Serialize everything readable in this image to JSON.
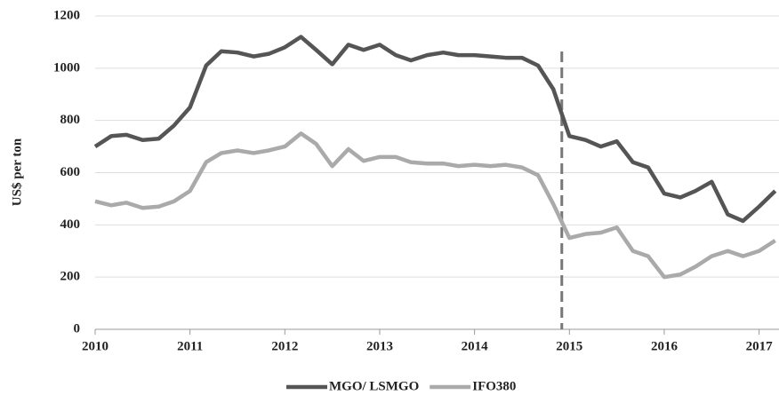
{
  "chart_data": {
    "type": "line",
    "y_label": "US$ per ton",
    "x": [
      2010,
      2010.17,
      2010.33,
      2010.5,
      2010.67,
      2010.83,
      2011,
      2011.17,
      2011.33,
      2011.5,
      2011.67,
      2011.83,
      2012,
      2012.17,
      2012.33,
      2012.5,
      2012.67,
      2012.83,
      2013,
      2013.17,
      2013.33,
      2013.5,
      2013.67,
      2013.83,
      2014,
      2014.17,
      2014.33,
      2014.5,
      2014.67,
      2014.83,
      2015,
      2015.17,
      2015.33,
      2015.5,
      2015.67,
      2015.83,
      2016,
      2016.17,
      2016.33,
      2016.5,
      2016.67,
      2016.83,
      2017,
      2017.17
    ],
    "series": [
      {
        "name": "MGO/ LSMGO",
        "color": "#555555",
        "values": [
          700,
          740,
          745,
          725,
          730,
          780,
          850,
          1010,
          1065,
          1060,
          1045,
          1055,
          1080,
          1120,
          1070,
          1015,
          1090,
          1070,
          1090,
          1050,
          1030,
          1050,
          1060,
          1050,
          1050,
          1045,
          1040,
          1040,
          1010,
          920,
          740,
          725,
          700,
          720,
          640,
          620,
          520,
          505,
          530,
          565,
          440,
          415,
          470,
          530
        ]
      },
      {
        "name": "IFO380",
        "color": "#aaaaaa",
        "values": [
          490,
          475,
          485,
          465,
          470,
          490,
          530,
          640,
          675,
          685,
          675,
          685,
          700,
          750,
          710,
          625,
          690,
          645,
          660,
          660,
          640,
          635,
          635,
          625,
          630,
          625,
          630,
          620,
          590,
          480,
          350,
          365,
          370,
          390,
          300,
          280,
          200,
          210,
          240,
          280,
          300,
          280,
          300,
          340
        ]
      }
    ],
    "xlim": [
      2010,
      2017.21
    ],
    "xticks": [
      2010,
      2011,
      2012,
      2013,
      2014,
      2015,
      2016,
      2017
    ],
    "ylim": [
      0,
      1200
    ],
    "yticks": [
      0,
      200,
      400,
      600,
      800,
      1000,
      1200
    ],
    "vline": 2014.92,
    "grid": true,
    "legend": "bottom"
  }
}
